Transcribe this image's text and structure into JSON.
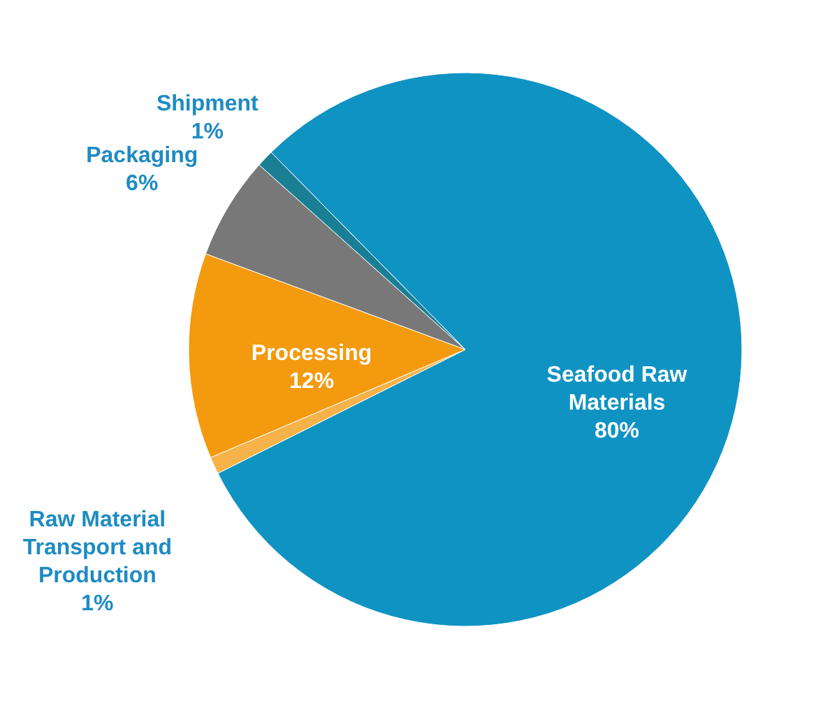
{
  "chart_data": {
    "type": "pie",
    "categories": [
      "Seafood Raw Materials",
      "Raw Material Transport and Production",
      "Processing",
      "Packaging",
      "Shipment"
    ],
    "values": [
      80,
      1,
      12,
      6,
      1
    ],
    "value_labels": [
      "80%",
      "1%",
      "12%",
      "6%",
      "1%"
    ],
    "colors": [
      "#0f93c3",
      "#f7b24a",
      "#f39a0e",
      "#787878",
      "#1a7f95"
    ]
  }
}
